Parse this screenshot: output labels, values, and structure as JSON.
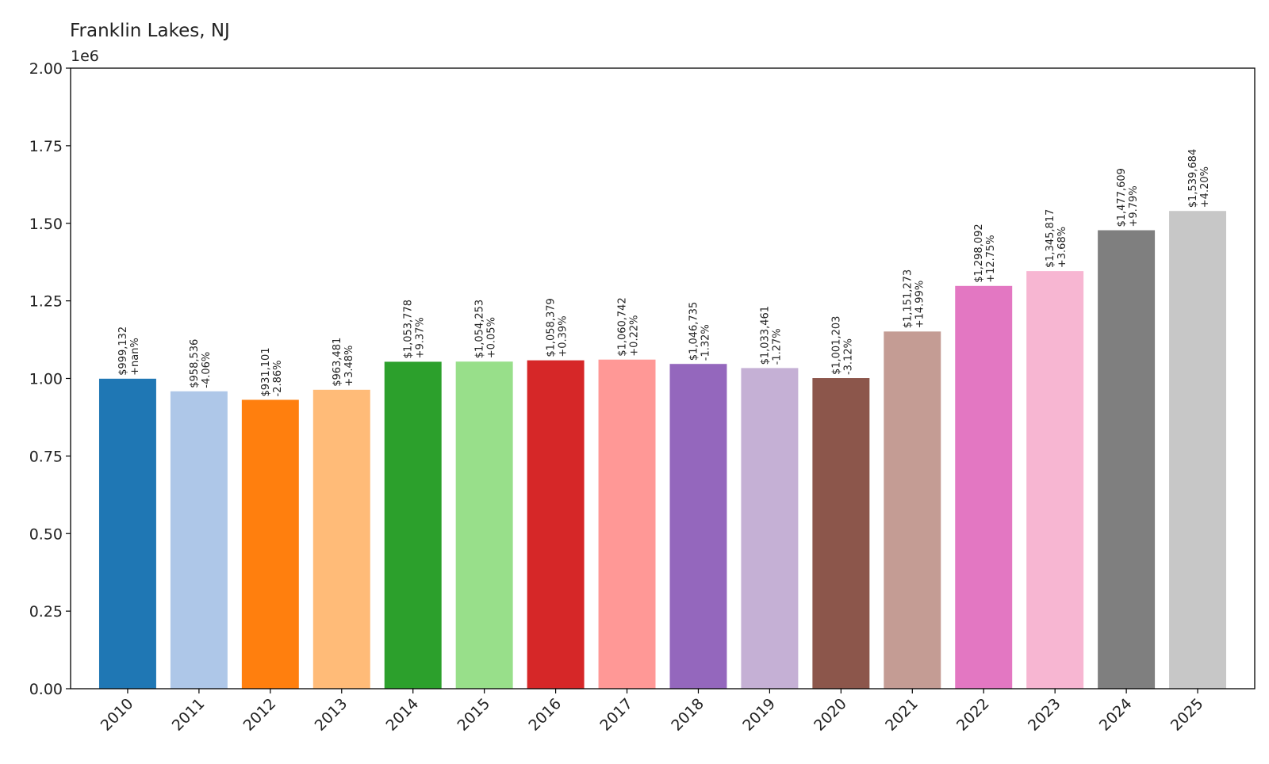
{
  "chart_data": {
    "type": "bar",
    "title": "Franklin Lakes, NJ",
    "xlabel": "",
    "ylabel": "",
    "y_offset_label": "1e6",
    "ylim": [
      0,
      2000000
    ],
    "y_ticks": [
      0,
      250000,
      500000,
      750000,
      1000000,
      1250000,
      1500000,
      1750000,
      2000000
    ],
    "y_tick_labels": [
      "0.00",
      "0.25",
      "0.50",
      "0.75",
      "1.00",
      "1.25",
      "1.50",
      "1.75",
      "2.00"
    ],
    "grid": false,
    "legend": "none",
    "categories": [
      "2010",
      "2011",
      "2012",
      "2013",
      "2014",
      "2015",
      "2016",
      "2017",
      "2018",
      "2019",
      "2020",
      "2021",
      "2022",
      "2023",
      "2024",
      "2025"
    ],
    "values": [
      999132,
      958536,
      931101,
      963481,
      1053778,
      1054253,
      1058379,
      1060742,
      1046735,
      1033461,
      1001203,
      1151273,
      1298092,
      1345817,
      1477609,
      1539684
    ],
    "value_labels": [
      "$999,132",
      "$958,536",
      "$931,101",
      "$963,481",
      "$1,053,778",
      "$1,054,253",
      "$1,058,379",
      "$1,060,742",
      "$1,046,735",
      "$1,033,461",
      "$1,001,203",
      "$1,151,273",
      "$1,298,092",
      "$1,345,817",
      "$1,477,609",
      "$1,539,684"
    ],
    "change_labels": [
      "+nan%",
      "-4.06%",
      "-2.86%",
      "+3.48%",
      "+9.37%",
      "+0.05%",
      "+0.39%",
      "+0.22%",
      "-1.32%",
      "-1.27%",
      "-3.12%",
      "+14.99%",
      "+12.75%",
      "+3.68%",
      "+9.79%",
      "+4.20%"
    ],
    "colors": [
      "#1f77b4",
      "#aec7e8",
      "#ff7f0e",
      "#ffbb78",
      "#2ca02c",
      "#98df8a",
      "#d62728",
      "#ff9896",
      "#9467bd",
      "#c5b0d5",
      "#8c564b",
      "#c49c94",
      "#e377c2",
      "#f7b6d2",
      "#7f7f7f",
      "#c7c7c7"
    ]
  }
}
